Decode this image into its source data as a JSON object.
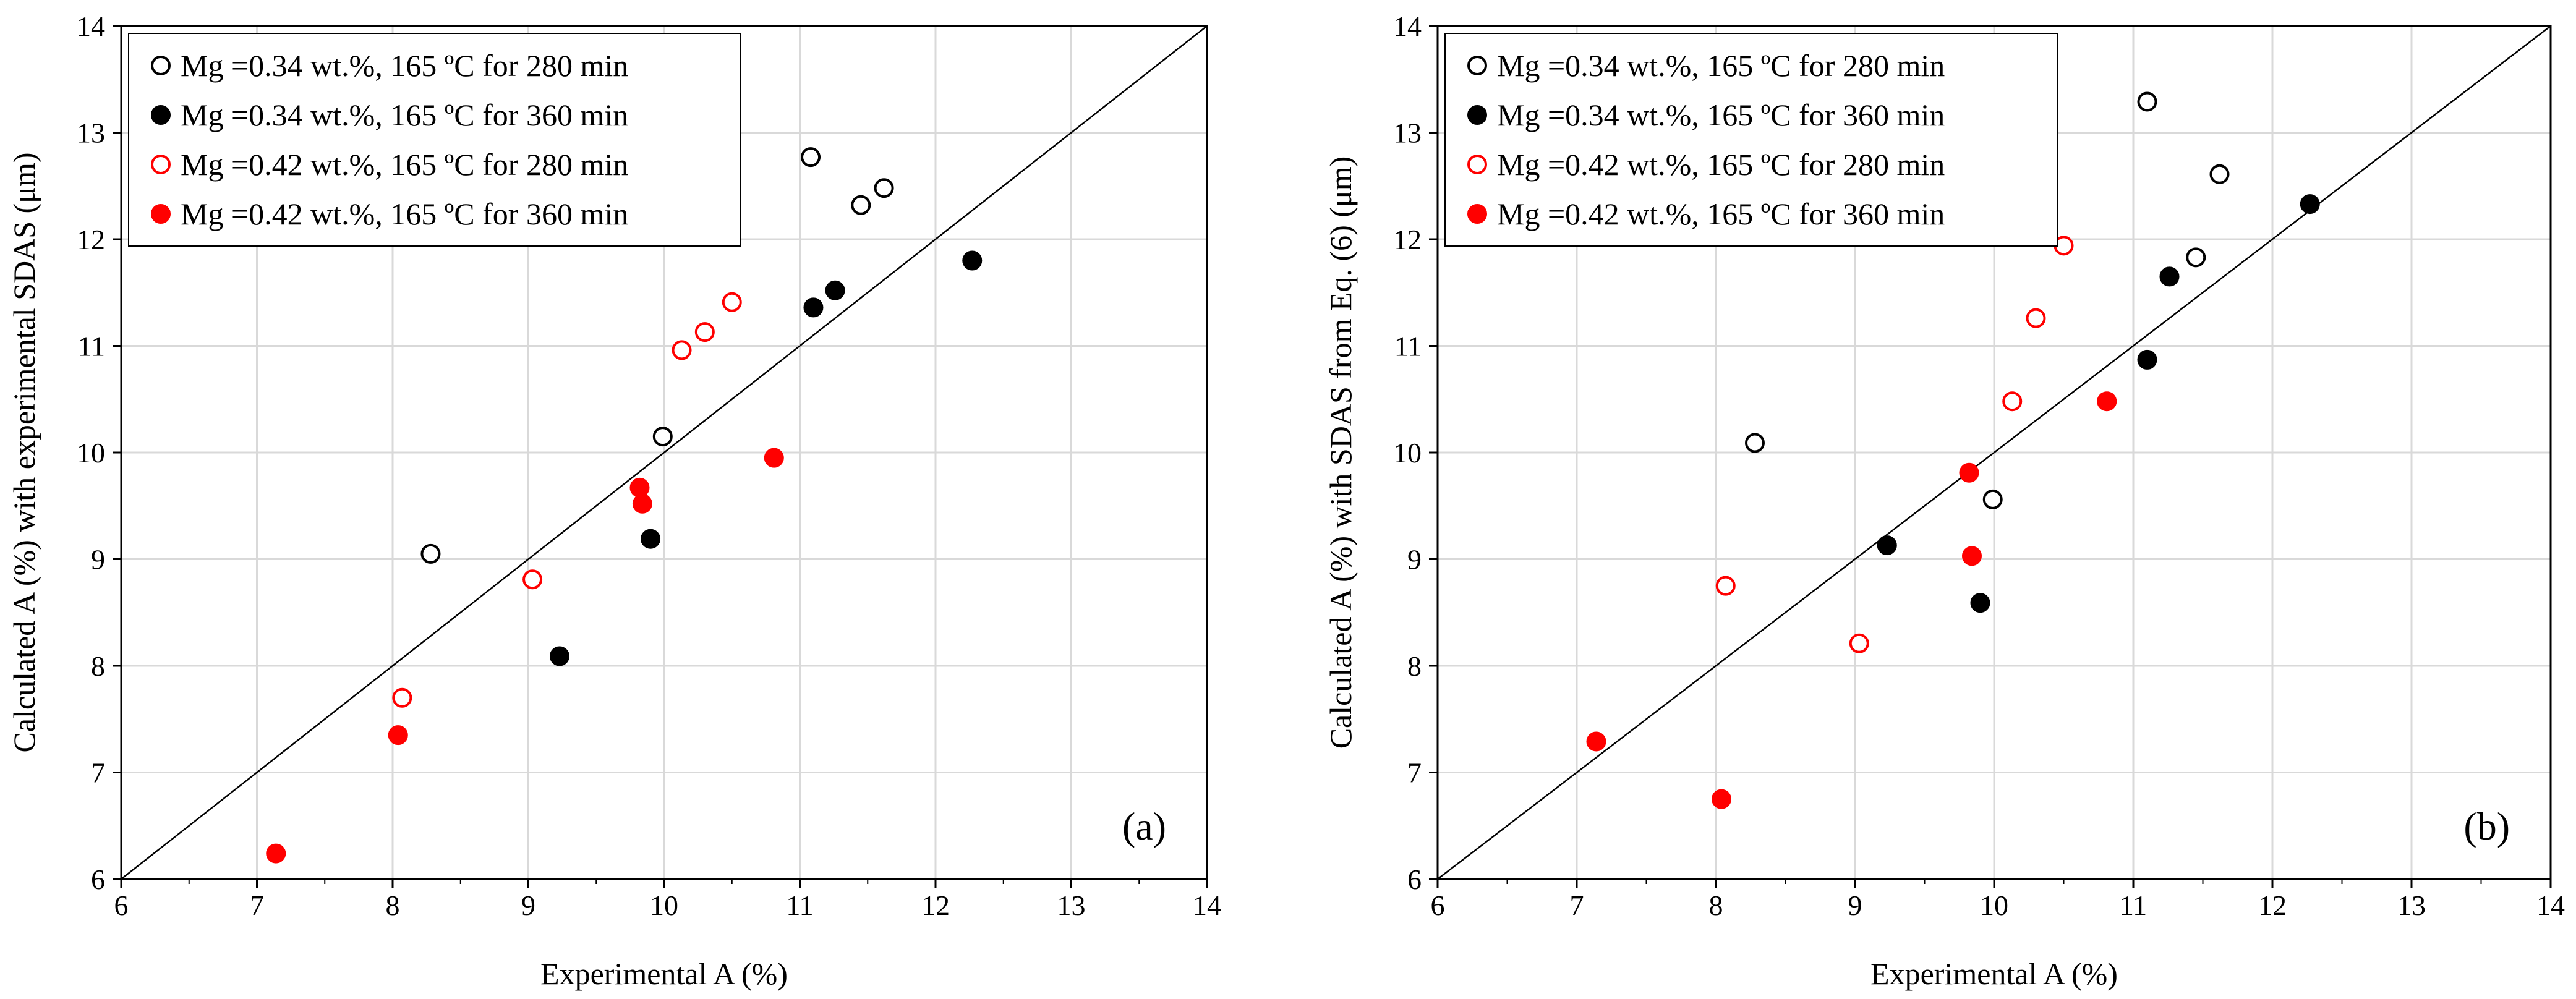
{
  "chart_data": [
    {
      "type": "scatter",
      "panel_label": "(a)",
      "xlabel": "Experimental A (%)",
      "ylabel": "Calculated A (%) with experimental SDAS (μm)",
      "xlim": [
        6,
        14
      ],
      "ylim": [
        6,
        14
      ],
      "xticks": [
        "6",
        "7",
        "8",
        "9",
        "10",
        "11",
        "12",
        "13",
        "14"
      ],
      "yticks": [
        "6",
        "7",
        "8",
        "9",
        "10",
        "11",
        "12",
        "13",
        "14"
      ],
      "grid": true,
      "legend_position": "top-left",
      "reference_line": {
        "name": "y = x",
        "from": [
          6,
          6
        ],
        "to": [
          14,
          14
        ]
      },
      "series": [
        {
          "name": "Mg =0.34 wt.%, 165 ºC for 280 min",
          "color": "#000000",
          "filled": false,
          "points": [
            [
              8.28,
              9.05
            ],
            [
              9.99,
              10.15
            ],
            [
              11.08,
              12.77
            ],
            [
              11.45,
              12.32
            ],
            [
              11.62,
              12.48
            ]
          ]
        },
        {
          "name": "Mg =0.34 wt.%, 165 ºC for 360 min",
          "color": "#000000",
          "filled": true,
          "points": [
            [
              9.23,
              8.09
            ],
            [
              9.9,
              9.19
            ],
            [
              11.1,
              11.36
            ],
            [
              11.26,
              11.52
            ],
            [
              12.27,
              11.8
            ]
          ]
        },
        {
          "name": "Mg =0.42 wt.%, 165 ºC for 280 min",
          "color": "#ff0000",
          "filled": false,
          "points": [
            [
              8.07,
              7.7
            ],
            [
              9.03,
              8.81
            ],
            [
              10.13,
              10.96
            ],
            [
              10.3,
              11.13
            ],
            [
              10.5,
              11.41
            ]
          ]
        },
        {
          "name": "Mg =0.42 wt.%, 165 ºC for 360 min",
          "color": "#ff0000",
          "filled": true,
          "points": [
            [
              7.14,
              6.24
            ],
            [
              8.04,
              7.35
            ],
            [
              9.82,
              9.67
            ],
            [
              9.84,
              9.52
            ],
            [
              10.81,
              9.95
            ]
          ]
        }
      ]
    },
    {
      "type": "scatter",
      "panel_label": "(b)",
      "xlabel": "Experimental A (%)",
      "ylabel": "Calculated A (%) with SDAS from Eq. (6) (μm)",
      "xlim": [
        6,
        14
      ],
      "ylim": [
        6,
        14
      ],
      "xticks": [
        "6",
        "7",
        "8",
        "9",
        "10",
        "11",
        "12",
        "13",
        "14"
      ],
      "yticks": [
        "6",
        "7",
        "8",
        "9",
        "10",
        "11",
        "12",
        "13",
        "14"
      ],
      "grid": true,
      "legend_position": "top-left",
      "reference_line": {
        "name": "y = x",
        "from": [
          6,
          6
        ],
        "to": [
          14,
          14
        ]
      },
      "series": [
        {
          "name": "Mg =0.34 wt.%, 165 ºC for 280 min",
          "color": "#000000",
          "filled": false,
          "points": [
            [
              8.28,
              10.09
            ],
            [
              9.99,
              9.56
            ],
            [
              11.1,
              13.29
            ],
            [
              11.45,
              11.83
            ],
            [
              11.62,
              12.61
            ]
          ]
        },
        {
          "name": "Mg =0.34 wt.%, 165 ºC for 360 min",
          "color": "#000000",
          "filled": true,
          "points": [
            [
              9.23,
              9.13
            ],
            [
              9.9,
              8.59
            ],
            [
              11.1,
              10.87
            ],
            [
              11.26,
              11.65
            ],
            [
              12.27,
              12.33
            ]
          ]
        },
        {
          "name": "Mg =0.42 wt.%, 165 ºC for 280 min",
          "color": "#ff0000",
          "filled": false,
          "points": [
            [
              8.07,
              8.75
            ],
            [
              9.03,
              8.21
            ],
            [
              10.13,
              10.48
            ],
            [
              10.3,
              11.26
            ],
            [
              10.5,
              11.94
            ]
          ]
        },
        {
          "name": "Mg =0.42 wt.%, 165 ºC for 360 min",
          "color": "#ff0000",
          "filled": true,
          "points": [
            [
              7.14,
              7.29
            ],
            [
              8.04,
              6.75
            ],
            [
              9.82,
              9.81
            ],
            [
              9.84,
              9.03
            ],
            [
              10.81,
              10.48
            ]
          ]
        }
      ]
    }
  ]
}
